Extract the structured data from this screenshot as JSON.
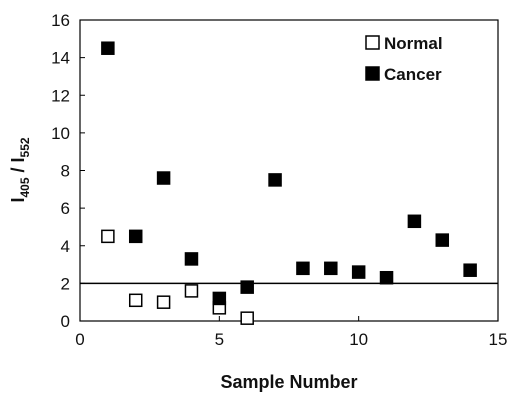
{
  "chart_data": {
    "type": "scatter",
    "xlabel": "Sample Number",
    "ylabel": "I405 / I552",
    "ylabel_parts": {
      "main1": "I",
      "sub1": "405",
      "sep": " / I",
      "sub2": "552"
    },
    "xlim": [
      0,
      15
    ],
    "ylim": [
      0,
      16
    ],
    "xticks": [
      0,
      5,
      10,
      15
    ],
    "yticks": [
      0,
      2,
      4,
      6,
      8,
      10,
      12,
      14,
      16
    ],
    "legend_position": "top-right",
    "threshold_line": {
      "y": 2.0
    },
    "series": [
      {
        "name": "Normal",
        "marker": "open-square",
        "color": "#000000",
        "points": [
          {
            "x": 1,
            "y": 4.5
          },
          {
            "x": 2,
            "y": 1.1
          },
          {
            "x": 3,
            "y": 1.0
          },
          {
            "x": 4,
            "y": 1.6
          },
          {
            "x": 5,
            "y": 0.7
          },
          {
            "x": 6,
            "y": 0.15
          }
        ]
      },
      {
        "name": "Cancer",
        "marker": "filled-square",
        "color": "#000000",
        "points": [
          {
            "x": 1,
            "y": 14.5
          },
          {
            "x": 2,
            "y": 4.5
          },
          {
            "x": 3,
            "y": 7.6
          },
          {
            "x": 4,
            "y": 3.3
          },
          {
            "x": 5,
            "y": 1.2
          },
          {
            "x": 6,
            "y": 1.8
          },
          {
            "x": 7,
            "y": 7.5
          },
          {
            "x": 8,
            "y": 2.8
          },
          {
            "x": 9,
            "y": 2.8
          },
          {
            "x": 10,
            "y": 2.6
          },
          {
            "x": 11,
            "y": 2.3
          },
          {
            "x": 12,
            "y": 5.3
          },
          {
            "x": 13,
            "y": 4.3
          },
          {
            "x": 14,
            "y": 2.7
          }
        ]
      }
    ]
  }
}
